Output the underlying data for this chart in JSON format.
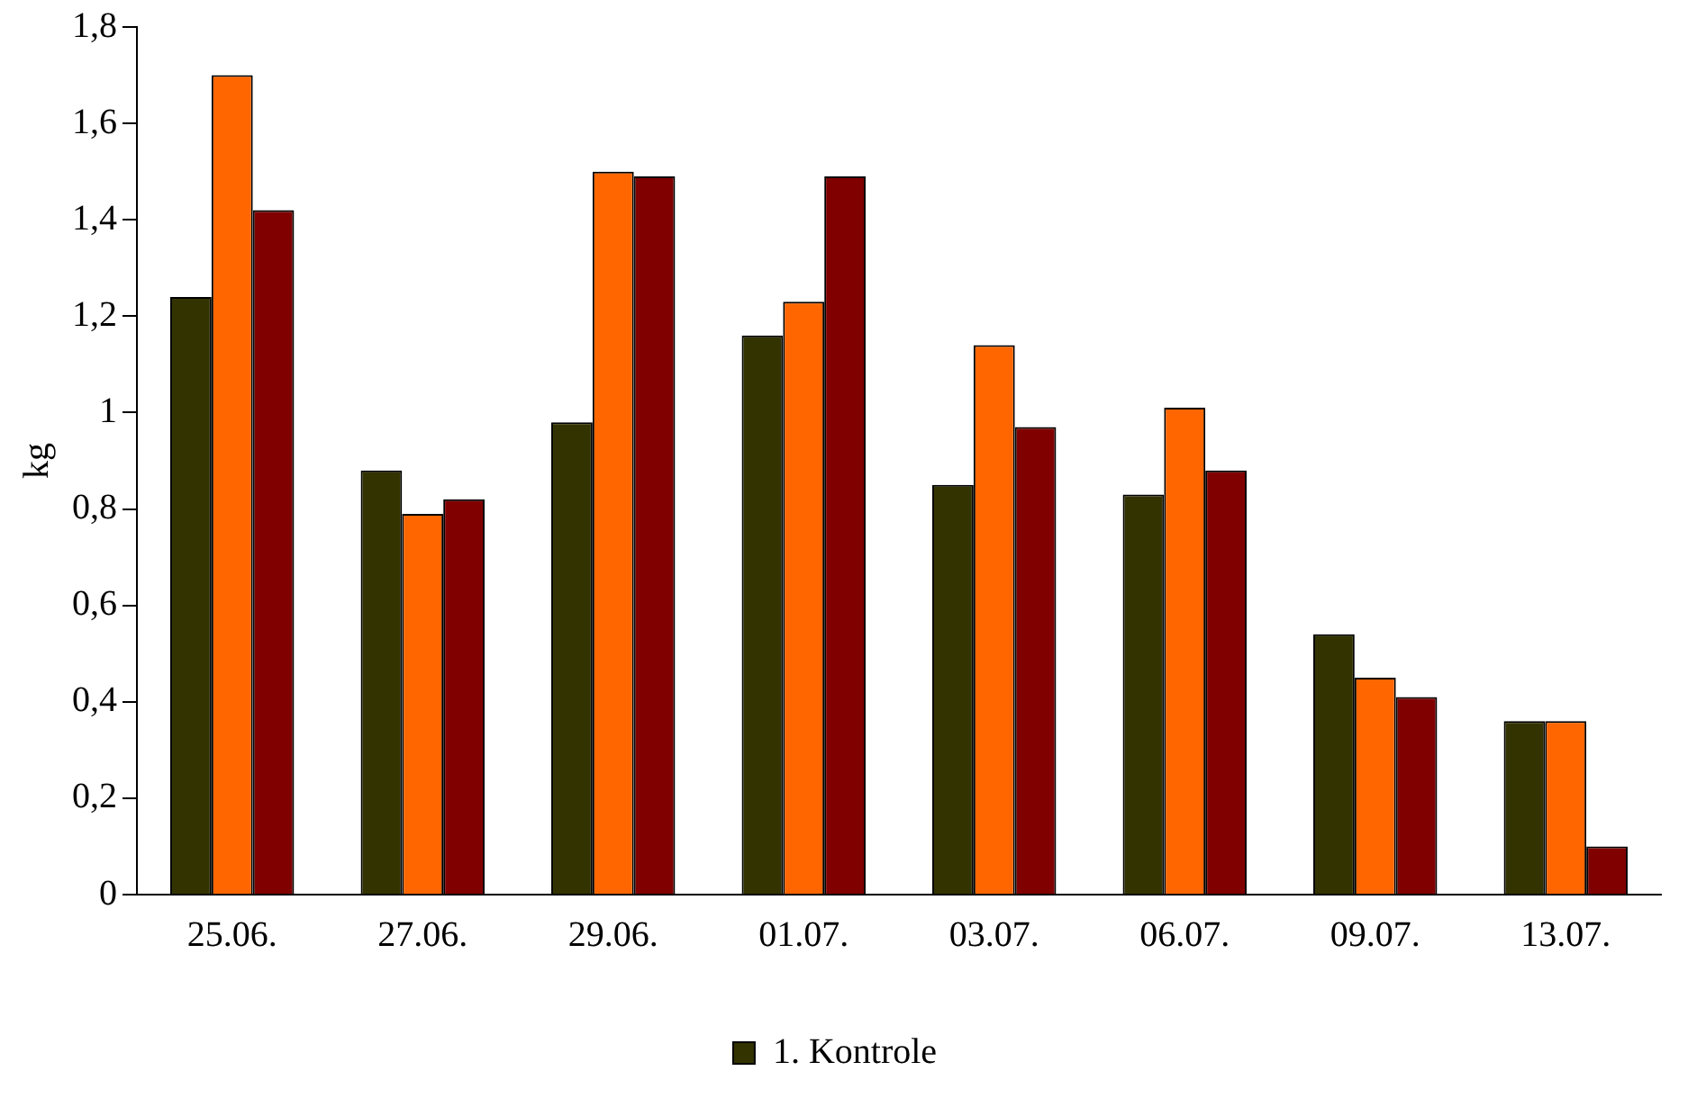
{
  "chart_data": {
    "type": "bar",
    "ylabel": "kg",
    "categories": [
      "25.06.",
      "27.06.",
      "29.06.",
      "01.07.",
      "03.07.",
      "06.07.",
      "09.07.",
      "13.07."
    ],
    "series": [
      {
        "name": "1. Kontrole",
        "color": "#333300",
        "values": [
          1.24,
          0.88,
          0.98,
          1.16,
          0.85,
          0.83,
          0.54,
          0.36
        ]
      },
      {
        "color": "#ff6600",
        "values": [
          1.7,
          0.79,
          1.5,
          1.23,
          1.14,
          1.01,
          0.45,
          0.36
        ]
      },
      {
        "color": "#800000",
        "values": [
          1.42,
          0.82,
          1.49,
          1.49,
          0.97,
          0.88,
          0.41,
          0.1
        ]
      }
    ],
    "ylim": [
      0,
      1.8
    ],
    "yticks": [
      {
        "value": 0,
        "label": "0"
      },
      {
        "value": 0.2,
        "label": "0,2"
      },
      {
        "value": 0.4,
        "label": "0,4"
      },
      {
        "value": 0.6,
        "label": "0,6"
      },
      {
        "value": 0.8,
        "label": "0,8"
      },
      {
        "value": 1,
        "label": "1"
      },
      {
        "value": 1.2,
        "label": "1,2"
      },
      {
        "value": 1.4,
        "label": "1,4"
      },
      {
        "value": 1.6,
        "label": "1,6"
      },
      {
        "value": 1.8,
        "label": "1,8"
      }
    ],
    "grid": false,
    "legend": "bottom"
  }
}
